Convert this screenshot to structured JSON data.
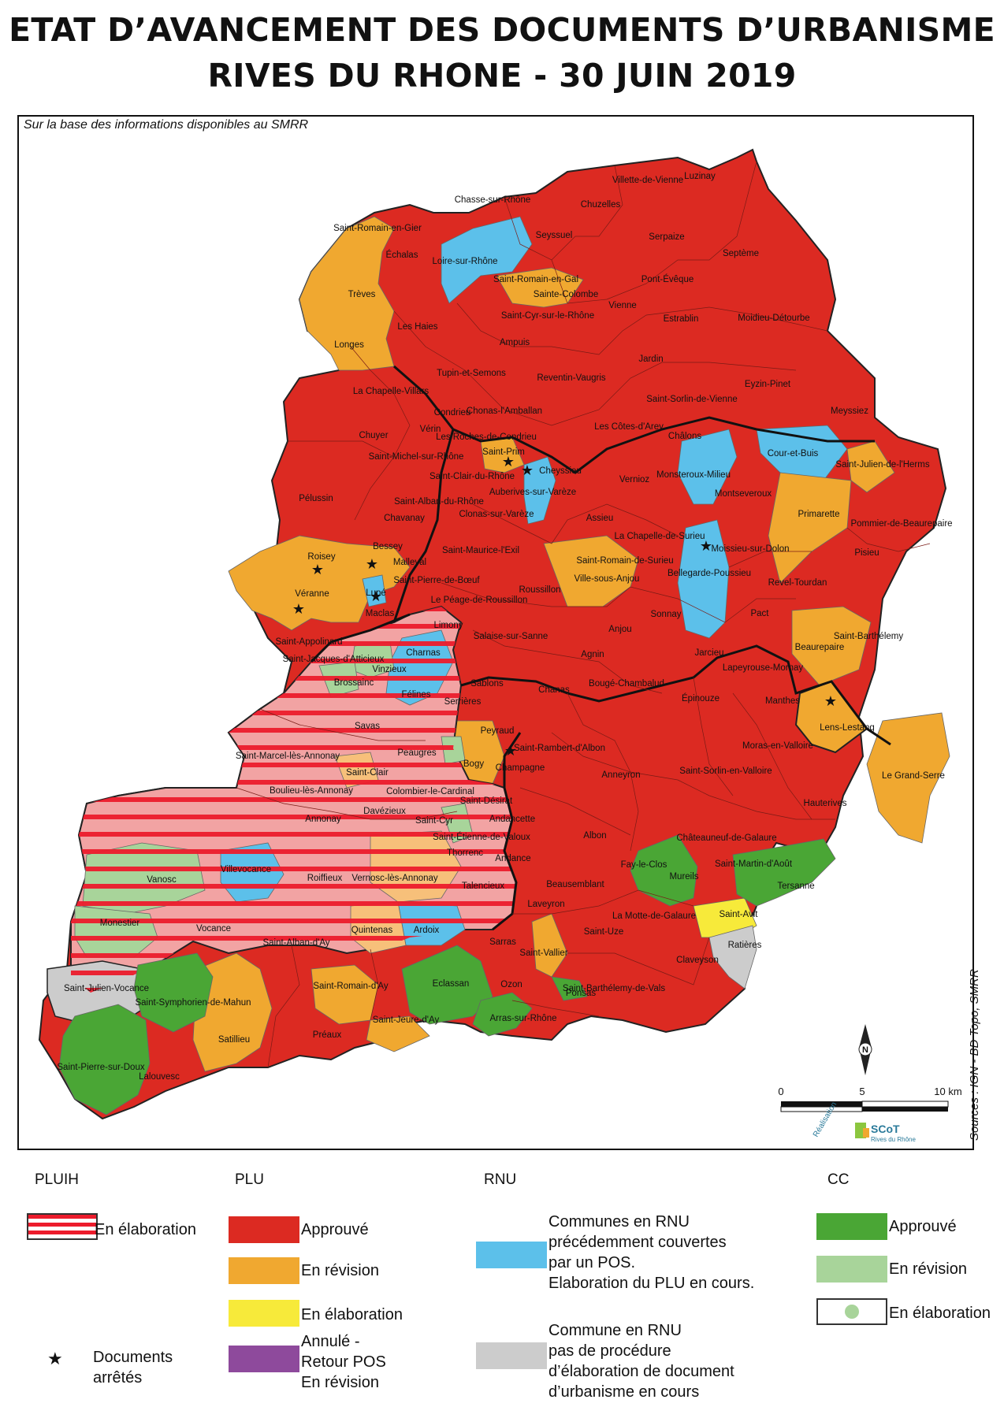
{
  "title_line1": "ETAT D’AVANCEMENT DES DOCUMENTS D’URBANISME",
  "title_line2": "RIVES DU RHONE - 30 JUIN 2019",
  "subtitle": "Sur la base des informations disponibles au SMRR",
  "sources": "Sources : IGN - BD Topo, SMRR",
  "credit": {
    "realisation": "Réalisation",
    "brand": "SCoT",
    "brand_sub": "Rives du Rhône"
  },
  "scale": {
    "zero": "0",
    "five": "5",
    "ten": "10 km"
  },
  "north_letter": "N",
  "colors": {
    "plu_approuve": "#dc2a22",
    "plu_revision": "#f0a830",
    "plu_elaboration": "#f7ea3a",
    "plu_annule": "#8e4a9c",
    "rnu_pos": "#5cc0ea",
    "rnu_none": "#cccccc",
    "cc_approuve": "#4aa635",
    "cc_revision": "#a8d49a",
    "pluih_stripe": "#ec1c2c"
  },
  "legend": {
    "pluih": {
      "heading": "PLUIH",
      "elaboration": "En élaboration",
      "arretes": "Documents arrêtés"
    },
    "plu": {
      "heading": "PLU",
      "approuve": "Approuvé",
      "revision": "En révision",
      "elaboration": "En élaboration",
      "annule_l1": "Annulé -",
      "annule_l2": "Retour POS",
      "annule_l3": "En révision"
    },
    "rnu": {
      "heading": "RNU",
      "pos_l1": "Communes en RNU",
      "pos_l2": "précédemment couvertes",
      "pos_l3": "par un POS.",
      "pos_l4": "Elaboration du PLU en cours.",
      "none_l1": "Commune en RNU",
      "none_l2": "pas de procédure",
      "none_l3": "d’élaboration de document",
      "none_l4": "d’urbanisme en cours"
    },
    "cc": {
      "heading": "CC",
      "approuve": "Approuvé",
      "revision": "En révision",
      "elaboration": "En élaboration"
    }
  },
  "places": [
    "Chasse-sur-Rhône",
    "Villette-de-Vienne",
    "Luzinay",
    "Chuzelles",
    "Saint-Romain-en-Gier",
    "Seyssuel",
    "Serpaize",
    "Échalas",
    "Loire-sur-Rhône",
    "Septème",
    "Saint-Romain-en-Gal",
    "Trèves",
    "Pont-Évêque",
    "Sainte-Colombe",
    "Vienne",
    "Saint-Cyr-sur-le-Rhône",
    "Estrablin",
    "Moidieu-Détourbe",
    "Les Haies",
    "Longes",
    "Ampuis",
    "Jardin",
    "Tupin-et-Semons",
    "Reventin-Vaugris",
    "Eyzin-Pinet",
    "La Chapelle-Villars",
    "Saint-Sorlin-de-Vienne",
    "Condrieu",
    "Chonas-l'Amballan",
    "Meyssiez",
    "Vérin",
    "Les Côtes-d'Arey",
    "Chuyer",
    "Les Roches-de-Condrieu",
    "Châlons",
    "Saint-Michel-sur-Rhône",
    "Saint-Prim",
    "Cour-et-Buis",
    "Saint-Julien-de-l'Herms",
    "Saint-Clair-du-Rhône",
    "Cheyssieu",
    "Monsteroux-Milieu",
    "Auberives-sur-Varèze",
    "Vernioz",
    "Montseveroux",
    "Pélussin",
    "Saint-Alban-du-Rhône",
    "Clonas-sur-Varèze",
    "Primarette",
    "Pommier-de-Beaurepaire",
    "Chavanay",
    "Assieu",
    "La Chapelle-de-Surieu",
    "Moissieu-sur-Dolon",
    "Pisieu",
    "Roisey",
    "Bessey",
    "Saint-Maurice-l'Exil",
    "Saint-Romain-de-Surieu",
    "Malleval",
    "Saint-Pierre-de-Bœuf",
    "Bellegarde-Poussieu",
    "Ville-sous-Anjou",
    "Véranne",
    "Lupé",
    "Revel-Tourdan",
    "Maclas",
    "Le Péage-de-Roussillon",
    "Roussillon",
    "Sonnay",
    "Pact",
    "Limony",
    "Anjou",
    "Saint-Barthélemy",
    "Salaise-sur-Sanne",
    "Beaurepaire",
    "Saint-Appolinard",
    "Agnin",
    "Jarcieu",
    "Saint-Jacques-d'Atticieux",
    "Charnas",
    "Lapeyrouse-Mornay",
    "Brossainc",
    "Vinzieux",
    "Sablons",
    "Chanas",
    "Bougé-Chambalud",
    "Épinouze",
    "Félines",
    "Serrières",
    "Manthes",
    "Lens-Lestang",
    "Savas",
    "Peyraud",
    "Saint-Rambert-d'Albon",
    "Moras-en-Valloire",
    "Saint-Marcel-lès-Annonay",
    "Peaugres",
    "Saint-Clair",
    "Bogy",
    "Champagne",
    "Saint-Sorlin-en-Valloire",
    "Anneyron",
    "Le Grand-Serre",
    "Boulieu-lès-Annonay",
    "Colombier-le-Cardinal",
    "Saint-Désirat",
    "Hauterives",
    "Davézieux",
    "Annonay",
    "Saint-Cyr",
    "Andancette",
    "Saint-Étienne-de-Valoux",
    "Albon",
    "Châteauneuf-de-Galaure",
    "Thorrenc",
    "Andance",
    "Villevocance",
    "Vernosc-lès-Annonay",
    "Vanosc",
    "Roiffieux",
    "Talencieux",
    "Fay-le-Clos",
    "Mureils",
    "Saint-Martin-d'Août",
    "Beausemblant",
    "Tersanne",
    "Laveyron",
    "Monestier",
    "Vocance",
    "Quintenas",
    "Ardoix",
    "La Motte-de-Galaure",
    "Saint-Avit",
    "Saint-Uze",
    "Saint-Alban-d'Ay",
    "Sarras",
    "Ratières",
    "Saint-Vallier",
    "Claveyson",
    "Saint-Julien-Vocance",
    "Saint-Romain-d'Ay",
    "Eclassan",
    "Ozon",
    "Saint-Barthélemy-de-Vals",
    "Saint-Symphorien-de-Mahun",
    "Ponsas",
    "Saint-Jeure-d'Ay",
    "Arras-sur-Rhône",
    "Satillieu",
    "Préaux",
    "Saint-Pierre-sur-Doux",
    "Lalouvesc"
  ]
}
